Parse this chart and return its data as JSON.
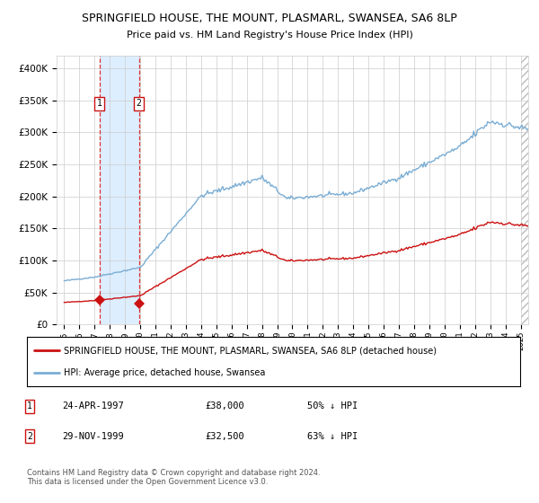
{
  "title": "SPRINGFIELD HOUSE, THE MOUNT, PLASMARL, SWANSEA, SA6 8LP",
  "subtitle": "Price paid vs. HM Land Registry's House Price Index (HPI)",
  "legend_entry1": "SPRINGFIELD HOUSE, THE MOUNT, PLASMARL, SWANSEA, SA6 8LP (detached house)",
  "legend_entry2": "HPI: Average price, detached house, Swansea",
  "footnote": "Contains HM Land Registry data © Crown copyright and database right 2024.\nThis data is licensed under the Open Government Licence v3.0.",
  "sale1_date": "24-APR-1997",
  "sale1_price": 38000,
  "sale1_pct": "50% ↓ HPI",
  "sale2_date": "29-NOV-1999",
  "sale2_price": 32500,
  "sale2_pct": "63% ↓ HPI",
  "sale1_year": 1997.31,
  "sale2_year": 1999.91,
  "hpi_color": "#7aadd4",
  "price_color": "#cc1111",
  "marker_color": "#cc1111",
  "vline_color": "#dd3333",
  "shade_color": "#ddeeff",
  "ylim": [
    0,
    420000
  ],
  "yticks": [
    0,
    50000,
    100000,
    150000,
    200000,
    250000,
    300000,
    350000,
    400000
  ],
  "xlim_start": 1994.5,
  "xlim_end": 2025.5,
  "xticks": [
    1995,
    1996,
    1997,
    1998,
    1999,
    2000,
    2001,
    2002,
    2003,
    2004,
    2005,
    2006,
    2007,
    2008,
    2009,
    2010,
    2011,
    2012,
    2013,
    2014,
    2015,
    2016,
    2017,
    2018,
    2019,
    2020,
    2021,
    2022,
    2023,
    2024,
    2025
  ]
}
